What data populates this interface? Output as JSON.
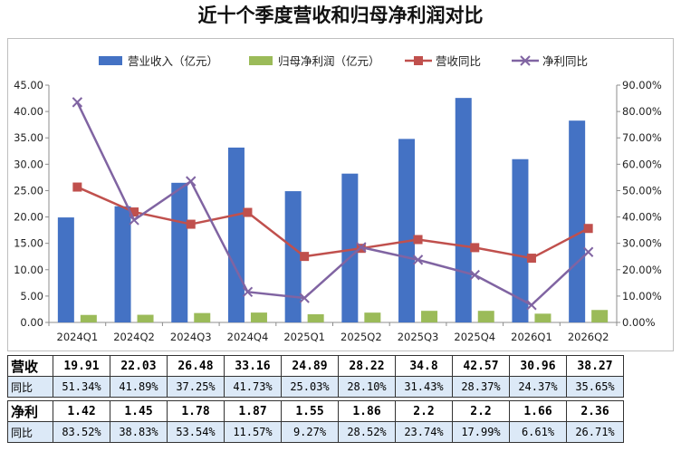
{
  "chart_data": {
    "type": "bar",
    "title": "近十个季度营收和归母净利润对比",
    "categories": [
      "2024Q1",
      "2024Q2",
      "2024Q3",
      "2024Q4",
      "2025Q1",
      "2025Q2",
      "2025Q3",
      "2025Q4",
      "2026Q1",
      "2026Q2"
    ],
    "series": [
      {
        "name": "营业收入（亿元）",
        "type": "bar",
        "axis": "left",
        "color": "#4472c4",
        "values": [
          19.91,
          22.03,
          26.48,
          33.16,
          24.89,
          28.22,
          34.8,
          42.57,
          30.96,
          38.27
        ]
      },
      {
        "name": "归母净利润（亿元）",
        "type": "bar",
        "axis": "left",
        "color": "#9bbb59",
        "values": [
          1.42,
          1.45,
          1.78,
          1.87,
          1.55,
          1.86,
          2.2,
          2.2,
          1.66,
          2.36
        ]
      },
      {
        "name": "营收同比",
        "type": "line",
        "axis": "right",
        "color": "#c0504d",
        "marker": "square",
        "values": [
          51.34,
          41.89,
          37.25,
          41.73,
          25.03,
          28.1,
          31.43,
          28.37,
          24.37,
          35.65
        ]
      },
      {
        "name": "净利同比",
        "type": "line",
        "axis": "right",
        "color": "#8064a2",
        "marker": "x",
        "values": [
          83.52,
          38.83,
          53.54,
          11.57,
          9.27,
          28.52,
          23.74,
          17.99,
          6.61,
          26.71
        ]
      }
    ],
    "y_left": {
      "min": 0,
      "max": 45,
      "step": 5,
      "tick_labels": [
        "0.00",
        "5.00",
        "10.00",
        "15.00",
        "20.00",
        "25.00",
        "30.00",
        "35.00",
        "40.00",
        "45.00"
      ]
    },
    "y_right": {
      "min": 0,
      "max": 90,
      "step": 10,
      "tick_labels": [
        "0.00%",
        "10.00%",
        "20.00%",
        "30.00%",
        "40.00%",
        "50.00%",
        "60.00%",
        "70.00%",
        "80.00%",
        "90.00%"
      ]
    },
    "grid": false,
    "legend": "top"
  },
  "table": {
    "rows": [
      {
        "label": "营收",
        "kind": "main",
        "values": [
          "19.91",
          "22.03",
          "26.48",
          "33.16",
          "24.89",
          "28.22",
          "34.8",
          "42.57",
          "30.96",
          "38.27"
        ]
      },
      {
        "label": "同比",
        "kind": "sub",
        "values": [
          "51.34%",
          "41.89%",
          "37.25%",
          "41.73%",
          "25.03%",
          "28.10%",
          "31.43%",
          "28.37%",
          "24.37%",
          "35.65%"
        ]
      },
      {
        "label": "净利",
        "kind": "main",
        "values": [
          "1.42",
          "1.45",
          "1.78",
          "1.87",
          "1.55",
          "1.86",
          "2.2",
          "2.2",
          "1.66",
          "2.36"
        ]
      },
      {
        "label": "同比",
        "kind": "sub",
        "values": [
          "83.52%",
          "38.83%",
          "53.54%",
          "11.57%",
          "9.27%",
          "28.52%",
          "23.74%",
          "17.99%",
          "6.61%",
          "26.71%"
        ]
      }
    ]
  }
}
